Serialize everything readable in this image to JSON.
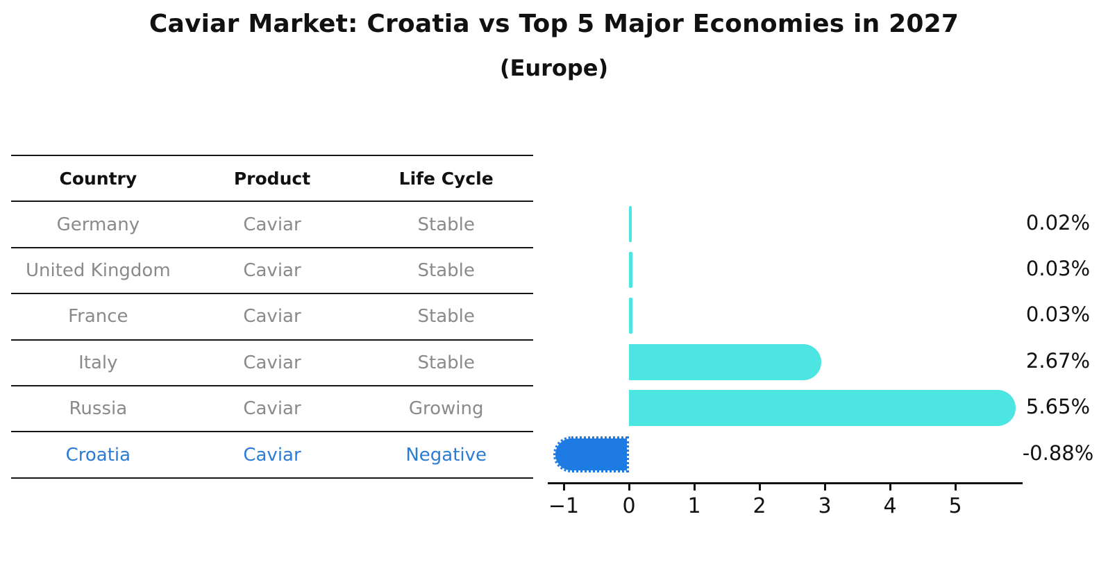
{
  "title": "Caviar Market: Croatia vs Top 5 Major Economies in 2027",
  "subtitle": "(Europe)",
  "table": {
    "headers": [
      "Country",
      "Product",
      "Life Cycle"
    ],
    "rows": [
      {
        "country": "Germany",
        "product": "Caviar",
        "life_cycle": "Stable",
        "highlight": false
      },
      {
        "country": "United Kingdom",
        "product": "Caviar",
        "life_cycle": "Stable",
        "highlight": false
      },
      {
        "country": "France",
        "product": "Caviar",
        "life_cycle": "Stable",
        "highlight": false
      },
      {
        "country": "Italy",
        "product": "Caviar",
        "life_cycle": "Stable",
        "highlight": false
      },
      {
        "country": "Russia",
        "product": "Caviar",
        "life_cycle": "Growing",
        "highlight": false
      },
      {
        "country": "Croatia",
        "product": "Caviar",
        "life_cycle": "Negative",
        "highlight": true
      }
    ]
  },
  "chart_data": {
    "type": "bar",
    "orientation": "horizontal",
    "title": "Caviar Market: Croatia vs Top 5 Major Economies in 2027",
    "subtitle": "(Europe)",
    "categories": [
      "Germany",
      "United Kingdom",
      "France",
      "Italy",
      "Russia",
      "Croatia"
    ],
    "values": [
      0.02,
      0.03,
      0.03,
      2.67,
      5.65,
      -0.88
    ],
    "value_labels": [
      "0.02%",
      "0.03%",
      "0.03%",
      "2.67%",
      "5.65%",
      "-0.88%"
    ],
    "unit": "%",
    "x_ticks": [
      "−1",
      "0",
      "1",
      "2",
      "3",
      "4",
      "5"
    ],
    "x_tick_values": [
      -1,
      0,
      1,
      2,
      3,
      4,
      5
    ],
    "xlim": [
      -1.25,
      6.05
    ],
    "grid": false,
    "legend": false,
    "bar_color": "#4de5e1",
    "highlight_color": "#1e7be4",
    "highlight_index": 5
  },
  "colors": {
    "bar_cyan": "#4de5e1",
    "bar_blue": "#1e7be4",
    "highlight_text": "#2b7cd6",
    "table_text": "#8a8a8a",
    "axis_black": "#111111"
  }
}
